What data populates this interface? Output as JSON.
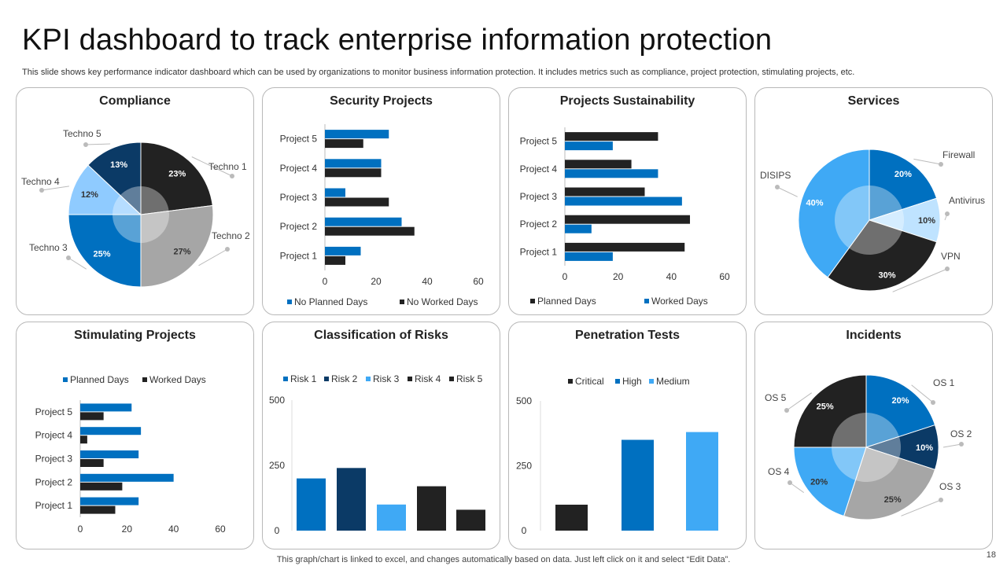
{
  "header": {
    "title": "KPI dashboard to track enterprise information protection",
    "subtitle": "This slide shows key performance indicator dashboard which can be used by organizations to monitor business information protection. It includes metrics such as compliance, project protection, stimulating projects, etc."
  },
  "footer": {
    "note": "This graph/chart is linked to excel,  and changes automatically based on data. Just left click on it and select “Edit Data”.",
    "page": "18"
  },
  "colors": {
    "black": "#222222",
    "blue": "#0070C0",
    "navy": "#0B3A66",
    "sky": "#3FA9F5",
    "lightblue": "#8FCBFF",
    "paleblue": "#BFE3FF",
    "darkgray": "#555555",
    "gray": "#A6A6A6"
  },
  "chart_data": [
    {
      "id": "compliance",
      "type": "pie",
      "title": "Compliance",
      "slices": [
        {
          "label": "Techno 1",
          "value": 23,
          "display": "23%"
        },
        {
          "label": "Techno 2",
          "value": 27,
          "display": "27%"
        },
        {
          "label": "Techno 3",
          "value": 25,
          "display": "25%"
        },
        {
          "label": "Techno 4",
          "value": 12,
          "display": "12%"
        },
        {
          "label": "Techno 5",
          "value": 13,
          "display": "13%"
        }
      ]
    },
    {
      "id": "security",
      "type": "bar",
      "orientation": "horizontal",
      "title": "Security Projects",
      "categories": [
        "Project 1",
        "Project 2",
        "Project 3",
        "Project 4",
        "Project 5"
      ],
      "series": [
        {
          "name": "No Planned Days",
          "values": [
            14,
            30,
            8,
            22,
            25
          ]
        },
        {
          "name": "No Worked Days",
          "values": [
            8,
            35,
            25,
            22,
            15
          ]
        }
      ],
      "xlim": [
        0,
        60
      ],
      "ticks": [
        "0",
        "20",
        "40",
        "60"
      ],
      "legend": "bottom"
    },
    {
      "id": "sustainability",
      "type": "bar",
      "orientation": "horizontal",
      "title": "Projects Sustainability",
      "categories": [
        "Project 1",
        "Project 2",
        "Project 3",
        "Project 4",
        "Project 5"
      ],
      "series": [
        {
          "name": "Planned Days",
          "values": [
            45,
            47,
            30,
            25,
            35
          ]
        },
        {
          "name": "Worked Days",
          "values": [
            18,
            10,
            44,
            35,
            18
          ]
        }
      ],
      "xlim": [
        0,
        60
      ],
      "ticks": [
        "0",
        "20",
        "40",
        "60"
      ],
      "legend": "bottom"
    },
    {
      "id": "services",
      "type": "pie",
      "title": "Services",
      "slices": [
        {
          "label": "Firewall",
          "value": 20,
          "display": "20%"
        },
        {
          "label": "Antivirus",
          "value": 10,
          "display": "10%"
        },
        {
          "label": "VPN",
          "value": 30,
          "display": "30%"
        },
        {
          "label": "DISIPS",
          "value": 40,
          "display": "40%"
        }
      ]
    },
    {
      "id": "stimulating",
      "type": "bar",
      "orientation": "horizontal",
      "title": "Stimulating  Projects",
      "categories": [
        "Project 1",
        "Project 2",
        "Project 3",
        "Project 4",
        "Project 5"
      ],
      "series": [
        {
          "name": "Planned Days",
          "values": [
            25,
            40,
            25,
            26,
            22
          ]
        },
        {
          "name": "Worked Days",
          "values": [
            15,
            18,
            10,
            3,
            10
          ]
        }
      ],
      "xlim": [
        0,
        60
      ],
      "ticks": [
        "0",
        "20",
        "40",
        "60"
      ],
      "legend": "top"
    },
    {
      "id": "risks",
      "type": "bar",
      "orientation": "vertical",
      "title": "Classification of Risks",
      "series": [
        {
          "name": "Risk 1",
          "value": 200
        },
        {
          "name": "Risk 2",
          "value": 240
        },
        {
          "name": "Risk 3",
          "value": 100
        },
        {
          "name": "Risk 4",
          "value": 170
        },
        {
          "name": "Risk 5",
          "value": 80
        }
      ],
      "ylim": [
        0,
        500
      ],
      "ticks": [
        "0",
        "250",
        "500"
      ],
      "legend": "top"
    },
    {
      "id": "penetration",
      "type": "bar",
      "orientation": "vertical",
      "title": "Penetration Tests",
      "series": [
        {
          "name": "Critical",
          "value": 100
        },
        {
          "name": "High",
          "value": 350
        },
        {
          "name": "Medium",
          "value": 380
        }
      ],
      "ylim": [
        0,
        500
      ],
      "ticks": [
        "0",
        "250",
        "500"
      ],
      "legend": "top"
    },
    {
      "id": "incidents",
      "type": "pie",
      "title": "Incidents",
      "slices": [
        {
          "label": "OS 1",
          "value": 20,
          "display": "20%"
        },
        {
          "label": "OS 2",
          "value": 10,
          "display": "10%"
        },
        {
          "label": "OS 3",
          "value": 25,
          "display": "25%"
        },
        {
          "label": "OS 4",
          "value": 20,
          "display": "20%"
        },
        {
          "label": "OS 5",
          "value": 25,
          "display": "25%"
        }
      ]
    }
  ]
}
